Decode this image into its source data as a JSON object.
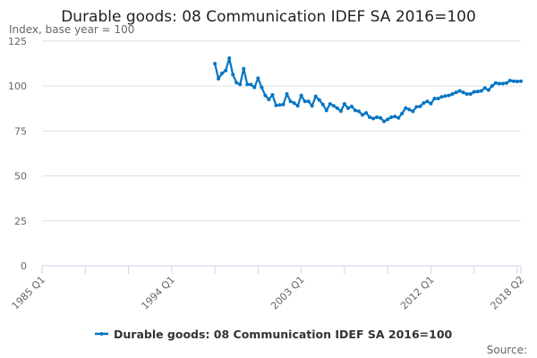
{
  "chart_data": {
    "type": "line",
    "title": "Durable goods: 08 Communication IDEF SA 2016=100",
    "ylabel": "Index, base year = 100",
    "xlabel": "",
    "source_label": "Source:",
    "ylim": [
      0,
      125
    ],
    "yticks": [
      0,
      25,
      50,
      75,
      100,
      125
    ],
    "xlim": [
      "1985 Q1",
      "2018 Q2"
    ],
    "xtick_labels": [
      "1985 Q1",
      "1994 Q1",
      "2003 Q1",
      "2012 Q1",
      "2018 Q2"
    ],
    "grid": true,
    "legend_position": "bottom",
    "color": "#0075c2",
    "series": [
      {
        "name": "Durable goods: 08 Communication IDEF SA 2016=100",
        "start": "1997 Q1",
        "frequency": "quarterly",
        "values": [
          112.4,
          104,
          107,
          108.5,
          115.4,
          106.3,
          101.8,
          100.8,
          109.6,
          100.8,
          100.8,
          99.2,
          104.3,
          99.2,
          94.7,
          92.5,
          95,
          89.2,
          89.4,
          89.7,
          95.5,
          91.4,
          90.5,
          88.9,
          94.7,
          91.4,
          91.4,
          88.9,
          94.2,
          92.2,
          89.7,
          86.4,
          90,
          88.9,
          87.6,
          86,
          90,
          87.6,
          88.6,
          86.4,
          85.9,
          83.9,
          85,
          82.6,
          81.9,
          82.6,
          82.2,
          80.3,
          81.4,
          82.6,
          83,
          82.2,
          84.7,
          87.7,
          86.9,
          85.9,
          88.4,
          88.6,
          90.5,
          91.4,
          90.2,
          93,
          93,
          93.9,
          94.4,
          94.7,
          95.5,
          96.4,
          97.2,
          96.4,
          95.5,
          95.5,
          96.7,
          96.9,
          97.2,
          98.8,
          97.7,
          100,
          101.6,
          101.3,
          101.3,
          101.6,
          103,
          102.6,
          102.5,
          102.6
        ]
      }
    ]
  }
}
